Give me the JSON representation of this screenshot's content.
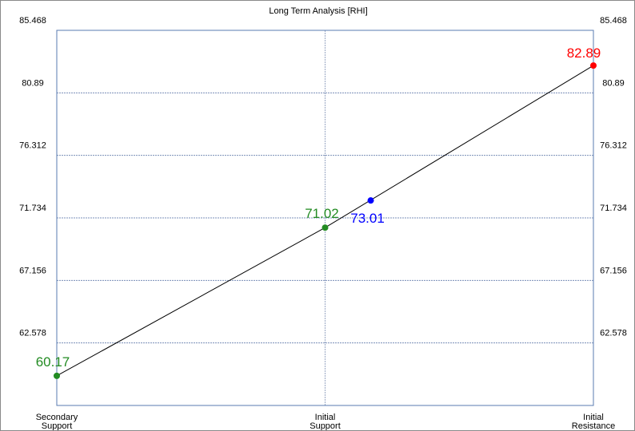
{
  "chart_data": {
    "type": "line",
    "title": "Long Term Analysis [RHI]",
    "categories": [
      "Secondary Support",
      "Initial Support",
      "Initial Resistance"
    ],
    "category_lines": [
      [
        "Secondary",
        "Support"
      ],
      [
        "Initial",
        "Support"
      ],
      [
        "Initial",
        "Resistance"
      ]
    ],
    "y_ticks": [
      "85.468",
      "80.89",
      "76.312",
      "71.734",
      "67.156",
      "62.578"
    ],
    "ylim": [
      58.0,
      85.468
    ],
    "grid": true,
    "series": [
      {
        "values": [
          60.17,
          71.02,
          82.89
        ],
        "line_color": "#000000"
      }
    ],
    "points": [
      {
        "x": 0.0,
        "y": 60.17,
        "label": "60.17",
        "color": "#228b22"
      },
      {
        "x": 1.0,
        "y": 71.02,
        "label": "71.02",
        "color": "#228b22"
      },
      {
        "x": 1.17,
        "y": 73.01,
        "label": "73.01",
        "color": "#0000ff"
      },
      {
        "x": 2.0,
        "y": 82.89,
        "label": "82.89",
        "color": "#ff0000"
      }
    ]
  }
}
